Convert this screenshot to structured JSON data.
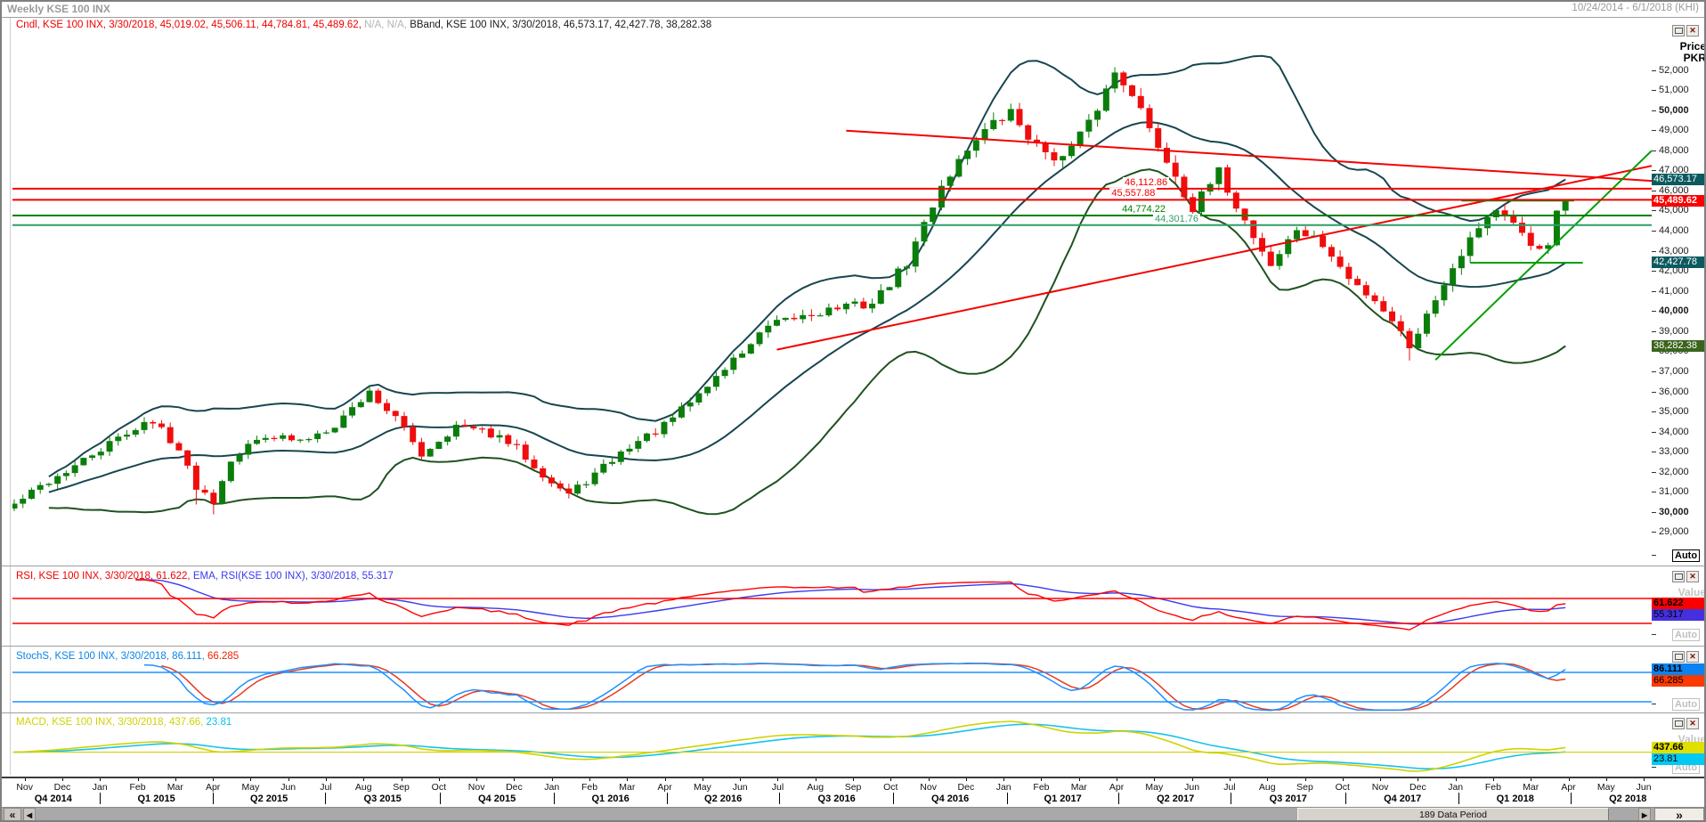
{
  "window": {
    "title": "Weekly KSE 100 INX",
    "range": "10/24/2014 - 6/1/2018 (KHI)"
  },
  "icons": {
    "minimize": "restore-box",
    "close": "✕",
    "scroll_far_left": "«",
    "scroll_left": "◂",
    "scroll_right": "▸",
    "scroll_far_right": "»"
  },
  "labels": {
    "auto": "Auto",
    "value": "Value",
    "price": "Price",
    "currency": "PKR"
  },
  "scrollbar": {
    "thumb_label": "189 Data Period"
  },
  "legends": {
    "price": [
      {
        "text": "Cndl, KSE 100 INX, 3/30/2018, 45,019.02, 45,506.11, 44,784.81, 45,489.62, ",
        "color": "#ee0000"
      },
      {
        "text": "N/A, N/A,  ",
        "color": "#b4b4b4"
      },
      {
        "text": "BBand, KSE 100 INX, 3/30/2018, 46,573.17, 42,427.78, 38,282.38",
        "color": "#1a1a1a"
      }
    ],
    "rsi": [
      {
        "text": "RSI, KSE 100 INX, 3/30/2018, 61.622,  ",
        "color": "#ee0000"
      },
      {
        "text": "EMA, RSI(KSE 100 INX), 3/30/2018, 55.317",
        "color": "#3a3aee"
      }
    ],
    "stoch": [
      {
        "text": "StochS, KSE 100 INX, 3/30/2018, 86.111, ",
        "color": "#0a84e8"
      },
      {
        "text": "66.285",
        "color": "#ee2200"
      }
    ],
    "macd": [
      {
        "text": "MACD, KSE 100 INX, 3/30/2018, 437.66, ",
        "color": "#cfd300"
      },
      {
        "text": "23.81",
        "color": "#00c5ee"
      }
    ]
  },
  "chart_data": {
    "type": "candlestick",
    "symbol": "KSE 100 INX",
    "timeframe": "Weekly",
    "visible_range": "10/24/2014 - 6/1/2018",
    "last_bar": {
      "date": "3/30/2018",
      "open": 45019.02,
      "high": 45506.11,
      "low": 44784.81,
      "close": 45489.62
    },
    "bollinger_last": {
      "upper": 46573.17,
      "middle": 42427.78,
      "lower": 38282.38
    },
    "rsi_last": 61.622,
    "rsi_ema_last": 55.317,
    "stoch_k_last": 86.111,
    "stoch_d_last": 66.285,
    "macd_last": 437.66,
    "macd_signal_last": 23.81,
    "bars": 180,
    "weeks_visible": 189,
    "weekly_close_anchors": [
      [
        0,
        30400
      ],
      [
        3,
        31300
      ],
      [
        7,
        32300
      ],
      [
        11,
        33400
      ],
      [
        15,
        34500
      ],
      [
        17,
        34200
      ],
      [
        19,
        33100
      ],
      [
        21,
        31300
      ],
      [
        23,
        30600
      ],
      [
        25,
        32700
      ],
      [
        29,
        33900
      ],
      [
        33,
        33500
      ],
      [
        37,
        34400
      ],
      [
        41,
        36000
      ],
      [
        44,
        34700
      ],
      [
        47,
        32900
      ],
      [
        51,
        34300
      ],
      [
        55,
        33900
      ],
      [
        58,
        33200
      ],
      [
        62,
        31500
      ],
      [
        64,
        30900
      ],
      [
        67,
        31900
      ],
      [
        71,
        33300
      ],
      [
        75,
        34300
      ],
      [
        79,
        35900
      ],
      [
        83,
        37600
      ],
      [
        87,
        39200
      ],
      [
        91,
        39800
      ],
      [
        95,
        40200
      ],
      [
        99,
        40400
      ],
      [
        103,
        42400
      ],
      [
        107,
        46300
      ],
      [
        111,
        48700
      ],
      [
        115,
        49900
      ],
      [
        118,
        48200
      ],
      [
        121,
        47600
      ],
      [
        124,
        49300
      ],
      [
        127,
        51900
      ],
      [
        129,
        51000
      ],
      [
        131,
        49000
      ],
      [
        134,
        46800
      ],
      [
        136,
        45100
      ],
      [
        139,
        46900
      ],
      [
        142,
        44500
      ],
      [
        145,
        42300
      ],
      [
        148,
        44100
      ],
      [
        151,
        43300
      ],
      [
        154,
        41600
      ],
      [
        157,
        40600
      ],
      [
        159,
        39600
      ],
      [
        161,
        38300
      ],
      [
        163,
        39800
      ],
      [
        165,
        41500
      ],
      [
        167,
        43000
      ],
      [
        169,
        44300
      ],
      [
        171,
        45100
      ],
      [
        173,
        44200
      ],
      [
        175,
        43300
      ],
      [
        177,
        43300
      ],
      [
        178,
        45019.02
      ],
      [
        179,
        45489.62
      ]
    ],
    "long_wick_weeks": [
      21,
      23,
      161
    ],
    "y_axis": {
      "unit": "PKR",
      "ticks": [
        52000,
        51000,
        50000,
        49000,
        48000,
        47000,
        46000,
        45000,
        44000,
        43000,
        42000,
        41000,
        40000,
        39000,
        38000,
        37000,
        36000,
        35000,
        34000,
        33000,
        32000,
        31000,
        30000,
        29000
      ],
      "bold_ticks": [
        50000,
        40000,
        30000
      ]
    },
    "price_tags": [
      {
        "text": "46,573.17",
        "price": 46573.17,
        "bg": "#0c5a5f",
        "fg": "#ffffff",
        "bold": false
      },
      {
        "text": "45,489.62",
        "price": 45489.62,
        "bg": "#fb0000",
        "fg": "#ffffff",
        "bold": true
      },
      {
        "text": "42,427.78",
        "price": 42427.78,
        "bg": "#0c5a5f",
        "fg": "#ffffff",
        "bold": false
      },
      {
        "text": "38,282.38",
        "price": 38282.38,
        "bg": "#3a641c",
        "fg": "#ffffff",
        "bold": false
      }
    ],
    "rsi_tags": [
      {
        "text": "61.622",
        "value": 61.622,
        "bg": "#fb0000",
        "fg": "#000000",
        "bold": true
      },
      {
        "text": "55.317",
        "value": 55.317,
        "bg": "#4431dd",
        "fg": "#000000",
        "bold": false
      }
    ],
    "stoch_tags": [
      {
        "text": "86.111",
        "value": 86.111,
        "bg": "#0a82f0",
        "fg": "#000000",
        "bold": true
      },
      {
        "text": "66.285",
        "value": 66.285,
        "bg": "#fa3a00",
        "fg": "#000000",
        "bold": false
      }
    ],
    "macd_tags": [
      {
        "text": "437.66",
        "value": 437.66,
        "bg": "#dfdf00",
        "fg": "#000000",
        "bold": true
      },
      {
        "text": "23.81",
        "value": 23.81,
        "bg": "#00c9f2",
        "fg": "#000000",
        "bold": false
      }
    ],
    "levels": [
      {
        "price": 46112.86,
        "label": "46,112.86",
        "color": "#f40000",
        "label_week": 131
      },
      {
        "price": 45557.88,
        "label": "45,557.88",
        "color": "#f40000",
        "label_week": 129.5
      },
      {
        "price": 44774.22,
        "label": "44,774.22",
        "color": "#008000",
        "label_week": 130.7
      },
      {
        "price": 44301.76,
        "label": "44,301.76",
        "color": "#2e9e68",
        "label_week": 134.5
      }
    ],
    "trendlines": [
      {
        "w1": 96,
        "p1": 49000,
        "w2": 189,
        "p2": 46500,
        "color": "#f40000"
      },
      {
        "w1": 88,
        "p1": 38100,
        "w2": 189,
        "p2": 47250,
        "color": "#f40000"
      },
      {
        "w1": 164,
        "p1": 37590,
        "w2": 189,
        "p2": 48000,
        "color": "#00a000"
      },
      {
        "w1": 167,
        "p1": 45520,
        "w2": 180,
        "p2": 45520,
        "color": "#00a000"
      },
      {
        "w1": 168,
        "p1": 42430,
        "w2": 181,
        "p2": 42430,
        "color": "#00a000"
      }
    ],
    "rsi_threshold_lines": [
      70,
      30
    ],
    "stoch_threshold_lines": [
      80,
      20
    ],
    "colors": {
      "candle_up": "#0b7d0b",
      "candle_down": "#ef0d0d",
      "band_upper": "#18464f",
      "band_middle": "#18464f",
      "band_lower": "#1f5220",
      "rsi": "#ff0000",
      "rsi_ema": "#3a3af0",
      "stoch_k": "#1e90ff",
      "stoch_d": "#e8391d",
      "macd": "#cfd300",
      "macd_signal": "#17c3ee"
    },
    "x_axis": {
      "months": [
        "Nov",
        "Dec",
        "Jan",
        "Feb",
        "Mar",
        "Apr",
        "May",
        "Jun",
        "Jul",
        "Aug",
        "Sep",
        "Oct",
        "Nov",
        "Dec",
        "Jan",
        "Feb",
        "Mar",
        "Apr",
        "May",
        "Jun",
        "Jul",
        "Aug",
        "Sep",
        "Oct",
        "Nov",
        "Dec",
        "Jan",
        "Feb",
        "Mar",
        "Apr",
        "May",
        "Jun",
        "Jul",
        "Aug",
        "Sep",
        "Oct",
        "Nov",
        "Dec",
        "Jan",
        "Feb",
        "Mar",
        "Apr",
        "May",
        "Jun"
      ],
      "quarters": [
        "Q4 2014",
        "Q1 2015",
        "Q2 2015",
        "Q3 2015",
        "Q4 2015",
        "Q1 2016",
        "Q2 2016",
        "Q3 2016",
        "Q4 2016",
        "Q1 2017",
        "Q2 2017",
        "Q3 2017",
        "Q4 2017",
        "Q1 2018",
        "Q2 2018"
      ],
      "quarter_center_weeks": [
        4.5,
        16.4,
        29.4,
        42.5,
        55.7,
        68.8,
        81.8,
        94.9,
        108,
        121,
        134,
        147,
        160.2,
        173.2,
        186.2
      ],
      "quarter_boundary_weeks": [
        9.9,
        22.9,
        35.9,
        49.1,
        62.3,
        75.3,
        88.3,
        101.4,
        114.6,
        127.4,
        140.4,
        153.6,
        166.7,
        179.6
      ]
    }
  }
}
